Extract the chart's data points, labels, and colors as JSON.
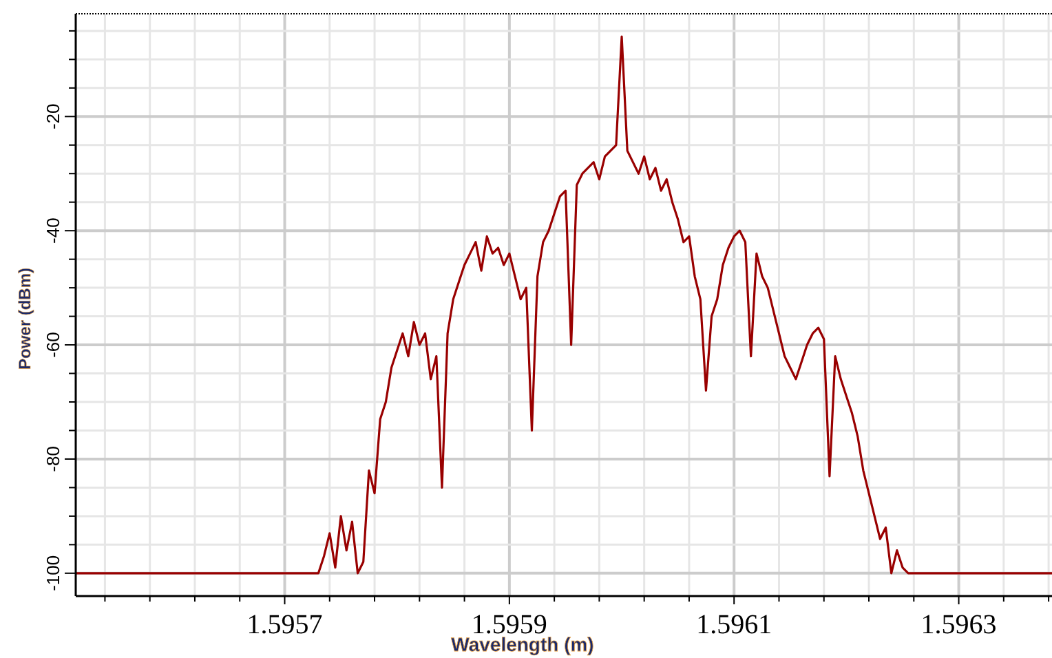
{
  "chart_data": {
    "type": "line",
    "xlabel": "Wavelength (m)",
    "ylabel": "Power (dBm)",
    "xlim": [
      1.595514,
      1.596383
    ],
    "ylim": [
      -104,
      -2
    ],
    "xticks": [
      {
        "value": 1.59554,
        "label": null
      },
      {
        "value": 1.59558,
        "label": null
      },
      {
        "value": 1.59562,
        "label": null
      },
      {
        "value": 1.59566,
        "label": null
      },
      1.5957,
      {
        "value": 1.59574,
        "label": null
      },
      {
        "value": 1.59578,
        "label": null
      },
      {
        "value": 1.59582,
        "label": null
      },
      {
        "value": 1.59586,
        "label": null
      },
      1.5959,
      {
        "value": 1.59594,
        "label": null
      },
      {
        "value": 1.59598,
        "label": null
      },
      {
        "value": 1.59602,
        "label": null
      },
      {
        "value": 1.59606,
        "label": null
      },
      1.5961,
      {
        "value": 1.59614,
        "label": null
      },
      {
        "value": 1.59618,
        "label": null
      },
      {
        "value": 1.59622,
        "label": null
      },
      {
        "value": 1.59626,
        "label": null
      },
      1.5963,
      {
        "value": 1.59634,
        "label": null
      },
      {
        "value": 1.59638,
        "label": null
      }
    ],
    "yticks": [
      -100,
      {
        "value": -95,
        "label": null
      },
      {
        "value": -90,
        "label": null
      },
      {
        "value": -85,
        "label": null
      },
      -80,
      {
        "value": -75,
        "label": null
      },
      {
        "value": -70,
        "label": null
      },
      {
        "value": -65,
        "label": null
      },
      -60,
      {
        "value": -55,
        "label": null
      },
      {
        "value": -50,
        "label": null
      },
      {
        "value": -45,
        "label": null
      },
      -40,
      {
        "value": -35,
        "label": null
      },
      {
        "value": -30,
        "label": null
      },
      {
        "value": -25,
        "label": null
      },
      -20,
      {
        "value": -15,
        "label": null
      },
      {
        "value": -10,
        "label": null
      },
      {
        "value": -5,
        "label": null
      }
    ],
    "grid": true,
    "marker": "none",
    "line_style": "solid",
    "series": [
      {
        "color": "#990000",
        "x": [
          1.595514,
          1.59573,
          1.595735,
          1.59574,
          1.595745,
          1.59575,
          1.595755,
          1.59576,
          1.595765,
          1.59577,
          1.595775,
          1.59578,
          1.595785,
          1.59579,
          1.595795,
          1.5958,
          1.595805,
          1.59581,
          1.595815,
          1.59582,
          1.595825,
          1.59583,
          1.595835,
          1.59584,
          1.595845,
          1.59585,
          1.595855,
          1.59586,
          1.595865,
          1.59587,
          1.595875,
          1.59588,
          1.595885,
          1.59589,
          1.595895,
          1.5959,
          1.595905,
          1.59591,
          1.595915,
          1.59592,
          1.595925,
          1.59593,
          1.595935,
          1.59594,
          1.595945,
          1.59595,
          1.595955,
          1.59596,
          1.595965,
          1.59597,
          1.595975,
          1.59598,
          1.595985,
          1.59599,
          1.595995,
          1.596,
          1.596005,
          1.59601,
          1.596015,
          1.59602,
          1.596025,
          1.59603,
          1.596035,
          1.59604,
          1.596045,
          1.59605,
          1.596055,
          1.59606,
          1.596065,
          1.59607,
          1.596075,
          1.59608,
          1.596085,
          1.59609,
          1.596095,
          1.5961,
          1.596105,
          1.59611,
          1.596115,
          1.59612,
          1.596125,
          1.59613,
          1.596135,
          1.59614,
          1.596145,
          1.59615,
          1.596155,
          1.59616,
          1.596165,
          1.59617,
          1.596175,
          1.59618,
          1.596185,
          1.59619,
          1.596195,
          1.5962,
          1.596205,
          1.59621,
          1.596215,
          1.59622,
          1.596225,
          1.59623,
          1.596235,
          1.59624,
          1.596245,
          1.59625,
          1.596255,
          1.59626,
          1.596383
        ],
        "values": [
          -100,
          -100,
          -97,
          -93,
          -99,
          -90,
          -96,
          -91,
          -100,
          -98,
          -82,
          -86,
          -73,
          -70,
          -64,
          -61,
          -58,
          -62,
          -56,
          -60,
          -58,
          -66,
          -62,
          -85,
          -58,
          -52,
          -49,
          -46,
          -44,
          -42,
          -47,
          -41,
          -44,
          -43,
          -46,
          -44,
          -48,
          -52,
          -50,
          -75,
          -48,
          -42,
          -40,
          -37,
          -34,
          -33,
          -60,
          -32,
          -30,
          -29,
          -28,
          -31,
          -27,
          -26,
          -25,
          -6,
          -26,
          -28,
          -30,
          -27,
          -31,
          -29,
          -33,
          -31,
          -35,
          -38,
          -42,
          -41,
          -48,
          -52,
          -68,
          -55,
          -52,
          -46,
          -43,
          -41,
          -40,
          -42,
          -62,
          -44,
          -48,
          -50,
          -54,
          -58,
          -62,
          -64,
          -66,
          -63,
          -60,
          -58,
          -57,
          -59,
          -83,
          -62,
          -66,
          -69,
          -72,
          -76,
          -82,
          -86,
          -90,
          -94,
          -92,
          -100,
          -96,
          -99,
          -100,
          -100,
          -100
        ]
      }
    ]
  }
}
